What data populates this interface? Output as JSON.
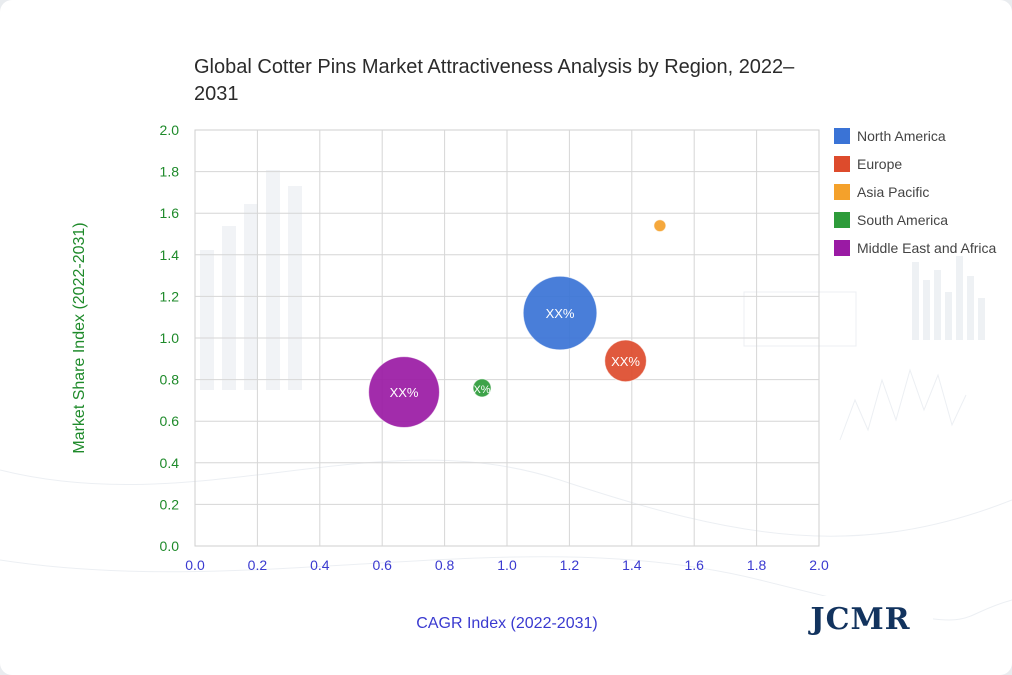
{
  "chart_data": {
    "type": "bubble",
    "title": "Global Cotter Pins Market Attractiveness Analysis by Region, 2022–2031",
    "xlabel": "CAGR Index (2022-2031)",
    "ylabel": "Market Share Index (2022-2031)",
    "xlim": [
      0,
      2
    ],
    "ylim": [
      0,
      2
    ],
    "x_ticks": [
      "0.0",
      "0.2",
      "0.4",
      "0.6",
      "0.8",
      "1.0",
      "1.2",
      "1.4",
      "1.6",
      "1.8",
      "2.0"
    ],
    "y_ticks": [
      "0.0",
      "0.2",
      "0.4",
      "0.6",
      "0.8",
      "1.0",
      "1.2",
      "1.4",
      "1.6",
      "1.8",
      "2.0"
    ],
    "grid": true,
    "legend_position": "right",
    "series": [
      {
        "name": "North America",
        "color": "#3a73d6",
        "x": 1.17,
        "y": 1.12,
        "size": 5.3,
        "label": "XX%"
      },
      {
        "name": "Europe",
        "color": "#dd4b2c",
        "x": 1.38,
        "y": 0.89,
        "size": 1.7,
        "label": "XX%"
      },
      {
        "name": "Asia Pacific",
        "color": "#f4a12b",
        "x": 1.49,
        "y": 1.54,
        "size": 0.14,
        "label": ""
      },
      {
        "name": "South America",
        "color": "#2d9b3a",
        "x": 0.92,
        "y": 0.76,
        "size": 0.32,
        "label": "X%"
      },
      {
        "name": "Middle East and Africa",
        "color": "#9a1aa4",
        "x": 0.67,
        "y": 0.74,
        "size": 4.9,
        "label": "XX%"
      }
    ]
  },
  "logo": {
    "text": "JCMR"
  }
}
